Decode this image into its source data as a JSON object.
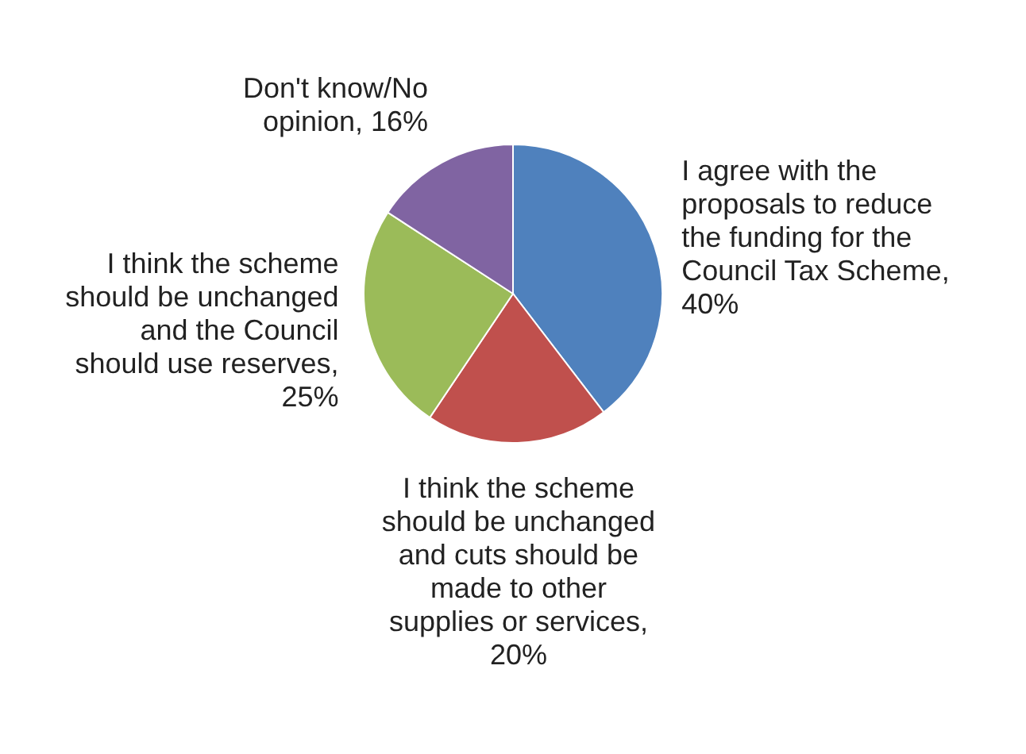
{
  "chart_data": {
    "type": "pie",
    "categories": [
      "I agree with the proposals to reduce the funding for the Council Tax Scheme, 40%",
      "I think the scheme should be unchanged and cuts should be made to other supplies or services, 20%",
      "I think the scheme should be unchanged and the Council should use reserves, 25%",
      "Don't know/No opinion, 16%"
    ],
    "values": [
      40,
      20,
      25,
      16
    ],
    "colors": [
      "#4f81bd",
      "#c0504d",
      "#9bbb59",
      "#8064a2"
    ]
  }
}
